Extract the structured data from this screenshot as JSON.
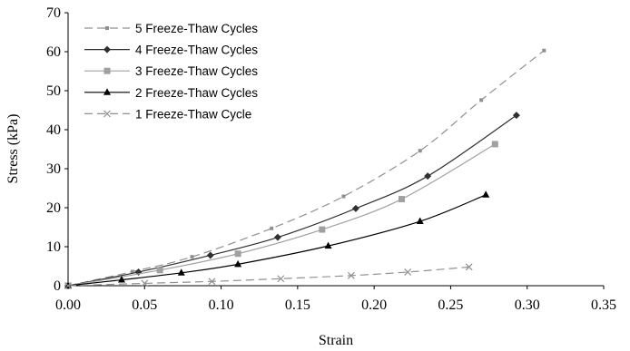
{
  "chart_data": {
    "type": "line",
    "xlabel": "Strain",
    "ylabel": "Stress (kPa)",
    "xlim": [
      0,
      0.35
    ],
    "ylim": [
      0,
      70
    ],
    "x_ticks": [
      "0.00",
      "0.05",
      "0.10",
      "0.15",
      "0.20",
      "0.25",
      "0.30",
      "0.35"
    ],
    "y_ticks": [
      "0",
      "10",
      "20",
      "30",
      "40",
      "50",
      "60",
      "70"
    ],
    "grid": false,
    "legend_position": "top-left",
    "series": [
      {
        "name": "5 Freeze-Thaw Cycles",
        "color": "#909090",
        "marker": "small-square",
        "line_style": "dashed",
        "points": [
          [
            0.0,
            0.0
          ],
          [
            0.042,
            3.6
          ],
          [
            0.081,
            7.4
          ],
          [
            0.133,
            14.7
          ],
          [
            0.18,
            22.9
          ],
          [
            0.23,
            34.6
          ],
          [
            0.27,
            47.6
          ],
          [
            0.311,
            60.3
          ]
        ]
      },
      {
        "name": "4 Freeze-Thaw Cycles",
        "color": "#303030",
        "marker": "diamond",
        "line_style": "solid",
        "points": [
          [
            0.0,
            0.0
          ],
          [
            0.046,
            3.5
          ],
          [
            0.093,
            7.8
          ],
          [
            0.137,
            12.4
          ],
          [
            0.188,
            19.8
          ],
          [
            0.235,
            28.1
          ],
          [
            0.293,
            43.7
          ]
        ]
      },
      {
        "name": "3 Freeze-Thaw Cycles",
        "color": "#a0a0a0",
        "marker": "square",
        "line_style": "solid",
        "points": [
          [
            0.0,
            0.0
          ],
          [
            0.06,
            4.0
          ],
          [
            0.111,
            8.2
          ],
          [
            0.166,
            14.4
          ],
          [
            0.218,
            22.2
          ],
          [
            0.279,
            36.3
          ]
        ]
      },
      {
        "name": "2 Freeze-Thaw Cycles",
        "color": "#000000",
        "marker": "triangle",
        "line_style": "solid",
        "points": [
          [
            0.0,
            0.0
          ],
          [
            0.035,
            1.5
          ],
          [
            0.074,
            3.3
          ],
          [
            0.111,
            5.5
          ],
          [
            0.17,
            10.2
          ],
          [
            0.23,
            16.5
          ],
          [
            0.273,
            23.3
          ]
        ]
      },
      {
        "name": "1 Freeze-Thaw  Cycle",
        "color": "#909090",
        "marker": "x",
        "line_style": "dashed",
        "points": [
          [
            0.0,
            0.0
          ],
          [
            0.05,
            0.6
          ],
          [
            0.094,
            1.1
          ],
          [
            0.139,
            1.8
          ],
          [
            0.185,
            2.6
          ],
          [
            0.222,
            3.5
          ],
          [
            0.262,
            4.8
          ]
        ]
      }
    ]
  }
}
